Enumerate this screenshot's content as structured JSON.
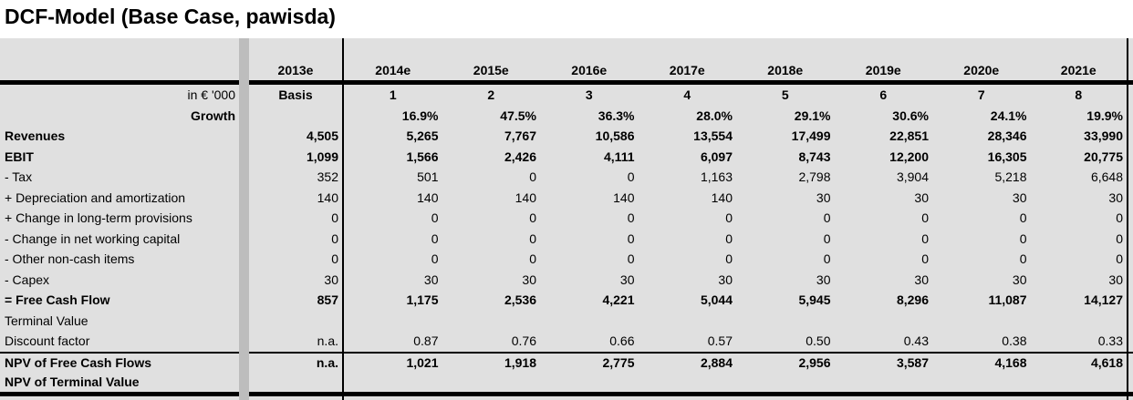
{
  "title": "DCF-Model (Base Case, pawisda)",
  "colors": {
    "table_background": "#e0e0e0",
    "separator_band": "#bdbdbd",
    "line": "#000000",
    "page_background": "#ffffff",
    "text": "#000000"
  },
  "table": {
    "years": [
      "2013e",
      "2014e",
      "2015e",
      "2016e",
      "2017e",
      "2018e",
      "2019e",
      "2020e",
      "2021e"
    ],
    "unit_row": {
      "label": "in € '000",
      "values": [
        "Basis",
        "1",
        "2",
        "3",
        "4",
        "5",
        "6",
        "7",
        "8"
      ]
    },
    "rows": [
      {
        "label": "Growth",
        "bold": true,
        "label_align": "right",
        "values": [
          "",
          "16.9%",
          "47.5%",
          "36.3%",
          "28.0%",
          "29.1%",
          "30.6%",
          "24.1%",
          "19.9%"
        ]
      },
      {
        "label": "Revenues",
        "bold": true,
        "label_align": "left",
        "values": [
          "4,505",
          "5,265",
          "7,767",
          "10,586",
          "13,554",
          "17,499",
          "22,851",
          "28,346",
          "33,990"
        ]
      },
      {
        "label": "EBIT",
        "bold": true,
        "label_align": "left",
        "values": [
          "1,099",
          "1,566",
          "2,426",
          "4,111",
          "6,097",
          "8,743",
          "12,200",
          "16,305",
          "20,775"
        ]
      },
      {
        "label": "- Tax",
        "bold": false,
        "label_align": "left",
        "values": [
          "352",
          "501",
          "0",
          "0",
          "1,163",
          "2,798",
          "3,904",
          "5,218",
          "6,648"
        ]
      },
      {
        "label": "+ Depreciation and amortization",
        "bold": false,
        "label_align": "left",
        "values": [
          "140",
          "140",
          "140",
          "140",
          "140",
          "30",
          "30",
          "30",
          "30"
        ]
      },
      {
        "label": "+ Change in long-term provisions",
        "bold": false,
        "label_align": "left",
        "values": [
          "0",
          "0",
          "0",
          "0",
          "0",
          "0",
          "0",
          "0",
          "0"
        ]
      },
      {
        "label": "- Change in net working capital",
        "bold": false,
        "label_align": "left",
        "values": [
          "0",
          "0",
          "0",
          "0",
          "0",
          "0",
          "0",
          "0",
          "0"
        ]
      },
      {
        "label": "- Other non-cash items",
        "bold": false,
        "label_align": "left",
        "values": [
          "0",
          "0",
          "0",
          "0",
          "0",
          "0",
          "0",
          "0",
          "0"
        ]
      },
      {
        "label": "- Capex",
        "bold": false,
        "label_align": "left",
        "values": [
          "30",
          "30",
          "30",
          "30",
          "30",
          "30",
          "30",
          "30",
          "30"
        ]
      },
      {
        "label": "= Free Cash Flow",
        "bold": true,
        "label_align": "left",
        "values": [
          "857",
          "1,175",
          "2,536",
          "4,221",
          "5,044",
          "5,945",
          "8,296",
          "11,087",
          "14,127"
        ]
      },
      {
        "label": "Terminal Value",
        "bold": false,
        "label_align": "left",
        "values": [
          "",
          "",
          "",
          "",
          "",
          "",
          "",
          "",
          ""
        ]
      },
      {
        "label": "Discount factor",
        "bold": false,
        "label_align": "left",
        "values": [
          "n.a.",
          "0.87",
          "0.76",
          "0.66",
          "0.57",
          "0.50",
          "0.43",
          "0.38",
          "0.33"
        ]
      }
    ],
    "npv_rows": [
      {
        "label": "NPV of Free Cash Flows",
        "bold": true,
        "label_align": "left",
        "values": [
          "n.a.",
          "1,021",
          "1,918",
          "2,775",
          "2,884",
          "2,956",
          "3,587",
          "4,168",
          "4,618"
        ]
      },
      {
        "label": "NPV of Terminal Value",
        "bold": true,
        "label_align": "left",
        "values": [
          "",
          "",
          "",
          "",
          "",
          "",
          "",
          "",
          ""
        ]
      }
    ]
  }
}
